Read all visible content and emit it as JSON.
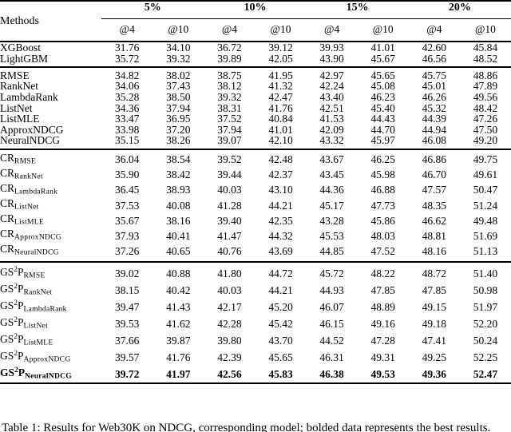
{
  "table": {
    "header": {
      "methods_label": "Methods",
      "groups": [
        {
          "label": "5%"
        },
        {
          "label": "10%"
        },
        {
          "label": "15%"
        },
        {
          "label": "20%"
        }
      ],
      "subcols": [
        "@4",
        "@10",
        "@4",
        "@10",
        "@4",
        "@10",
        "@4",
        "@10"
      ]
    },
    "sections": [
      {
        "rows": [
          {
            "label": {
              "main": "XGBoost"
            },
            "values": [
              "31.76",
              "34.10",
              "36.72",
              "39.12",
              "39.93",
              "41.01",
              "42.60",
              "45.84"
            ]
          },
          {
            "label": {
              "main": "LightGBM"
            },
            "values": [
              "35.72",
              "39.32",
              "39.89",
              "42.05",
              "43.90",
              "45.67",
              "46.56",
              "48.52"
            ]
          }
        ]
      },
      {
        "rows": [
          {
            "label": {
              "main": "RMSE"
            },
            "values": [
              "34.82",
              "38.02",
              "38.75",
              "41.95",
              "42.97",
              "45.65",
              "45.75",
              "48.86"
            ]
          },
          {
            "label": {
              "main": "RankNet"
            },
            "values": [
              "34.06",
              "37.43",
              "38.12",
              "41.32",
              "42.24",
              "45.08",
              "45.01",
              "47.89"
            ]
          },
          {
            "label": {
              "main": "LambdaRank"
            },
            "values": [
              "35.28",
              "38.50",
              "39.32",
              "42.47",
              "43.40",
              "46.23",
              "46.26",
              "49.56"
            ]
          },
          {
            "label": {
              "main": "ListNet"
            },
            "values": [
              "34.36",
              "37.94",
              "38.31",
              "41.76",
              "42.51",
              "45.40",
              "45.32",
              "48.42"
            ]
          },
          {
            "label": {
              "main": "ListMLE"
            },
            "values": [
              "33.47",
              "36.95",
              "37.52",
              "40.84",
              "41.53",
              "44.43",
              "44.39",
              "47.26"
            ]
          },
          {
            "label": {
              "main": "ApproxNDCG"
            },
            "values": [
              "33.98",
              "37.20",
              "37.94",
              "41.01",
              "42.09",
              "44.70",
              "44.94",
              "47.50"
            ]
          },
          {
            "label": {
              "main": "NeuralNDCG"
            },
            "values": [
              "35.15",
              "38.26",
              "39.07",
              "42.10",
              "43.32",
              "45.97",
              "46.08",
              "49.20"
            ]
          }
        ]
      },
      {
        "rows": [
          {
            "label": {
              "main": "CR",
              "sub": "RMSE"
            },
            "values": [
              "36.04",
              "38.54",
              "39.52",
              "42.48",
              "43.67",
              "46.25",
              "46.86",
              "49.75"
            ]
          },
          {
            "label": {
              "main": "CR",
              "sub": "RankNet"
            },
            "values": [
              "35.90",
              "38.42",
              "39.44",
              "42.37",
              "43.45",
              "45.98",
              "46.70",
              "49.61"
            ]
          },
          {
            "label": {
              "main": "CR",
              "sub": "LambdaRank"
            },
            "values": [
              "36.45",
              "38.93",
              "40.03",
              "43.10",
              "44.36",
              "46.88",
              "47.57",
              "50.47"
            ]
          },
          {
            "label": {
              "main": "CR",
              "sub": "ListNet"
            },
            "values": [
              "37.53",
              "40.08",
              "41.28",
              "44.21",
              "45.17",
              "47.73",
              "48.35",
              "51.24"
            ]
          },
          {
            "label": {
              "main": "CR",
              "sub": "ListMLE"
            },
            "values": [
              "35.67",
              "38.16",
              "39.40",
              "42.35",
              "43.28",
              "45.86",
              "46.62",
              "49.48"
            ]
          },
          {
            "label": {
              "main": "CR",
              "sub": "ApproxNDCG"
            },
            "values": [
              "37.93",
              "40.41",
              "41.47",
              "44.32",
              "45.53",
              "48.03",
              "48.81",
              "51.69"
            ]
          },
          {
            "label": {
              "main": "CR",
              "sub": "NeuralNDCG"
            },
            "values": [
              "37.26",
              "40.65",
              "40.76",
              "43.69",
              "44.85",
              "47.52",
              "48.16",
              "51.13"
            ]
          }
        ]
      },
      {
        "rows": [
          {
            "label": {
              "main": "GS",
              "sup": "2",
              "main2": "P",
              "sub": "RMSE"
            },
            "values": [
              "39.02",
              "40.88",
              "41.80",
              "44.72",
              "45.72",
              "48.22",
              "48.72",
              "51.40"
            ]
          },
          {
            "label": {
              "main": "GS",
              "sup": "2",
              "main2": "P",
              "sub": "RankNet"
            },
            "values": [
              "38.15",
              "40.42",
              "40.03",
              "44.21",
              "44.93",
              "47.85",
              "47.85",
              "50.98"
            ]
          },
          {
            "label": {
              "main": "GS",
              "sup": "2",
              "main2": "P",
              "sub": "LambdaRank"
            },
            "values": [
              "39.47",
              "41.43",
              "42.17",
              "45.20",
              "46.07",
              "48.89",
              "49.15",
              "51.97"
            ]
          },
          {
            "label": {
              "main": "GS",
              "sup": "2",
              "main2": "P",
              "sub": "ListNet"
            },
            "values": [
              "39.53",
              "41.62",
              "42.28",
              "45.42",
              "46.15",
              "49.16",
              "49.18",
              "52.20"
            ]
          },
          {
            "label": {
              "main": "GS",
              "sup": "2",
              "main2": "P",
              "sub": "ListMLE"
            },
            "values": [
              "37.66",
              "39.87",
              "39.80",
              "43.70",
              "44.52",
              "47.28",
              "47.41",
              "50.24"
            ]
          },
          {
            "label": {
              "main": "GS",
              "sup": "2",
              "main2": "P",
              "sub": "ApproxNDCG"
            },
            "values": [
              "39.57",
              "41.76",
              "42.39",
              "45.65",
              "46.31",
              "49.31",
              "49.25",
              "52.25"
            ]
          },
          {
            "label": {
              "main": "GS",
              "sup": "2",
              "main2": "P",
              "sub": "NeuralNDCG"
            },
            "bold": true,
            "values": [
              "39.72",
              "41.97",
              "42.56",
              "45.83",
              "46.38",
              "49.53",
              "49.36",
              "52.47"
            ]
          }
        ]
      }
    ]
  },
  "caption": "Table 1: Results for Web30K on NDCG, corresponding model; bolded data represents the best results."
}
